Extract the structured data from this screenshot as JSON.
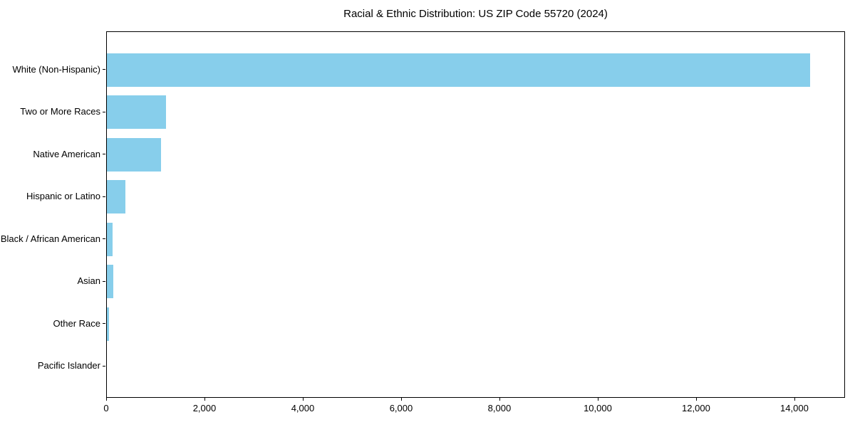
{
  "figure": {
    "background": "#ffffff"
  },
  "chart_data": {
    "type": "bar",
    "orientation": "horizontal",
    "title": "Racial & Ethnic Distribution: US ZIP Code 55720 (2024)",
    "categories": [
      "White (Non-Hispanic)",
      "Two or More Races",
      "Native American",
      "Hispanic or Latino",
      "Black / African American",
      "Asian",
      "Other Race",
      "Pacific Islander"
    ],
    "values": [
      14300,
      1200,
      1100,
      380,
      120,
      130,
      45,
      0
    ],
    "bar_color": "#87CEEB",
    "xlabel": "",
    "ylabel": "",
    "xlim": [
      0,
      15030
    ],
    "xticks": [
      0,
      2000,
      4000,
      6000,
      8000,
      10000,
      12000,
      14000
    ],
    "xtick_labels": [
      "0",
      "2,000",
      "4,000",
      "6,000",
      "8,000",
      "10,000",
      "12,000",
      "14,000"
    ],
    "grid": false,
    "legend": "none"
  }
}
